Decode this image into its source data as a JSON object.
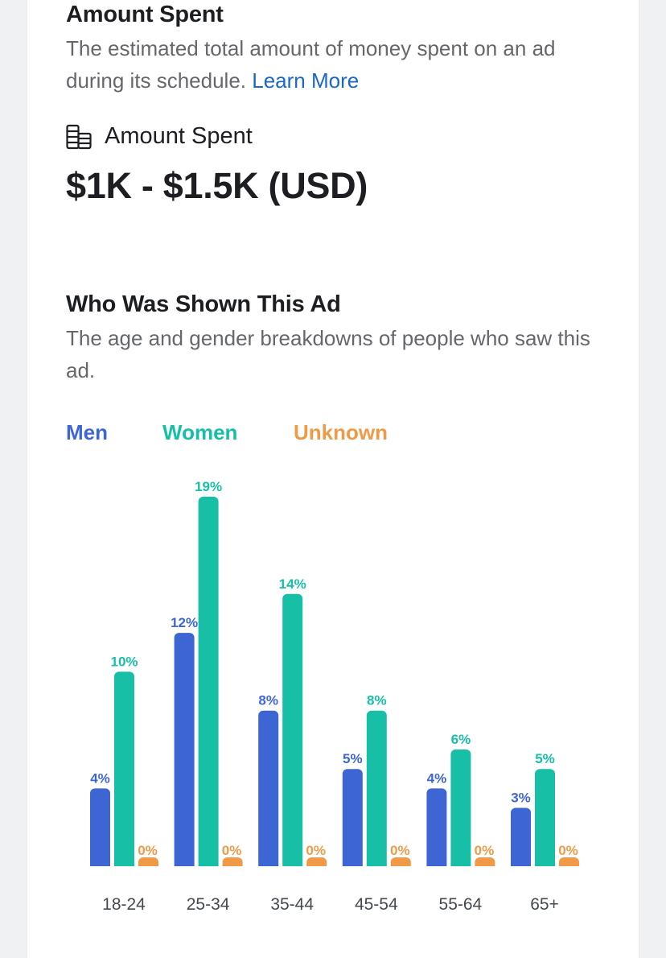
{
  "amount_section": {
    "title": "Amount Spent",
    "description": "The estimated total amount of money spent on an ad during its schedule.",
    "learn_more": "Learn More",
    "icon": "money-stack-icon",
    "spent_label": "Amount Spent",
    "spent_value": "$1K - $1.5K (USD)"
  },
  "audience_section": {
    "title": "Who Was Shown This Ad",
    "description": "The age and gender breakdowns of people who saw this ad."
  },
  "colors": {
    "men": "#3d66d4",
    "women": "#16bfa6",
    "unknown": "#f09a48",
    "tick_text": "#444950",
    "link": "#1a66c9"
  },
  "chart_data": {
    "type": "bar",
    "categories": [
      "18-24",
      "25-34",
      "35-44",
      "45-54",
      "55-64",
      "65+"
    ],
    "series": [
      {
        "name": "Men",
        "values": [
          4,
          12,
          8,
          5,
          4,
          3
        ],
        "labels": [
          "4%",
          "12%",
          "8%",
          "5%",
          "4%",
          "3%"
        ]
      },
      {
        "name": "Women",
        "values": [
          10,
          19,
          14,
          8,
          6,
          5
        ],
        "labels": [
          "10%",
          "19%",
          "14%",
          "8%",
          "6%",
          "5%"
        ]
      },
      {
        "name": "Unknown",
        "values": [
          0,
          0,
          0,
          0,
          0,
          0
        ],
        "labels": [
          "0%",
          "0%",
          "0%",
          "0%",
          "0%",
          "0%"
        ]
      }
    ],
    "ylim": [
      0,
      19
    ],
    "legend_position": "top-left",
    "grid": false
  }
}
